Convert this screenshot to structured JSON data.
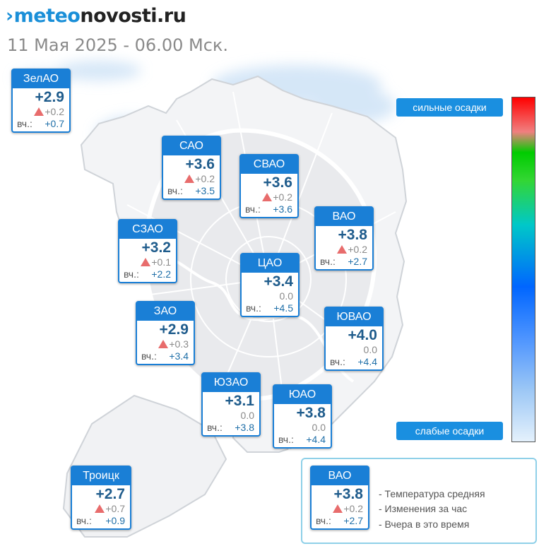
{
  "header": {
    "logo_icon": "›",
    "logo_bold": "meteo",
    "logo_rest": "novosti.ru",
    "datetime": "11 Мая 2025 - 06.00 Мск."
  },
  "colors": {
    "card_blue": "#1a7fd6",
    "temp_blue": "#1f5c8c",
    "rise_red": "#e86c6c",
    "legend_border": "#8fd0e8"
  },
  "scale": {
    "top_label": "сильные осадки",
    "bottom_label": "слабые осадки"
  },
  "districts": [
    {
      "id": "zelao",
      "name": "ЗелАО",
      "temp": "+2.9",
      "change": "+0.2",
      "trend": "up",
      "yesterday_label": "вч.:",
      "yesterday": "+0.7"
    },
    {
      "id": "sao",
      "name": "САО",
      "temp": "+3.6",
      "change": "+0.2",
      "trend": "up",
      "yesterday_label": "вч.:",
      "yesterday": "+3.5"
    },
    {
      "id": "svao",
      "name": "СВАО",
      "temp": "+3.6",
      "change": "+0.2",
      "trend": "up",
      "yesterday_label": "вч.:",
      "yesterday": "+3.6"
    },
    {
      "id": "szao",
      "name": "СЗАО",
      "temp": "+3.2",
      "change": "+0.1",
      "trend": "up",
      "yesterday_label": "вч.:",
      "yesterday": "+2.2"
    },
    {
      "id": "vao",
      "name": "ВАО",
      "temp": "+3.8",
      "change": "+0.2",
      "trend": "up",
      "yesterday_label": "вч.:",
      "yesterday": "+2.7"
    },
    {
      "id": "cao",
      "name": "ЦАО",
      "temp": "+3.4",
      "change": "0.0",
      "trend": "none",
      "yesterday_label": "вч.:",
      "yesterday": "+4.5"
    },
    {
      "id": "zao",
      "name": "ЗАО",
      "temp": "+2.9",
      "change": "+0.3",
      "trend": "up",
      "yesterday_label": "вч.:",
      "yesterday": "+3.4"
    },
    {
      "id": "yuvao",
      "name": "ЮВАО",
      "temp": "+4.0",
      "change": "0.0",
      "trend": "none",
      "yesterday_label": "вч.:",
      "yesterday": "+4.4"
    },
    {
      "id": "yuzao",
      "name": "ЮЗАО",
      "temp": "+3.1",
      "change": "0.0",
      "trend": "none",
      "yesterday_label": "вч.:",
      "yesterday": "+3.8"
    },
    {
      "id": "yuao",
      "name": "ЮАО",
      "temp": "+3.8",
      "change": "0.0",
      "trend": "none",
      "yesterday_label": "вч.:",
      "yesterday": "+4.4"
    },
    {
      "id": "troitsk",
      "name": "Троицк",
      "temp": "+2.7",
      "change": "+0.7",
      "trend": "up",
      "yesterday_label": "вч.:",
      "yesterday": "+0.9"
    }
  ],
  "legend": {
    "sample": {
      "name": "ВАО",
      "temp": "+3.8",
      "change": "+0.2",
      "trend": "up",
      "yesterday_label": "вч.:",
      "yesterday": "+2.7"
    },
    "lines": [
      "- Температура средняя",
      "- Изменения за час",
      "- Вчера в это время"
    ]
  }
}
